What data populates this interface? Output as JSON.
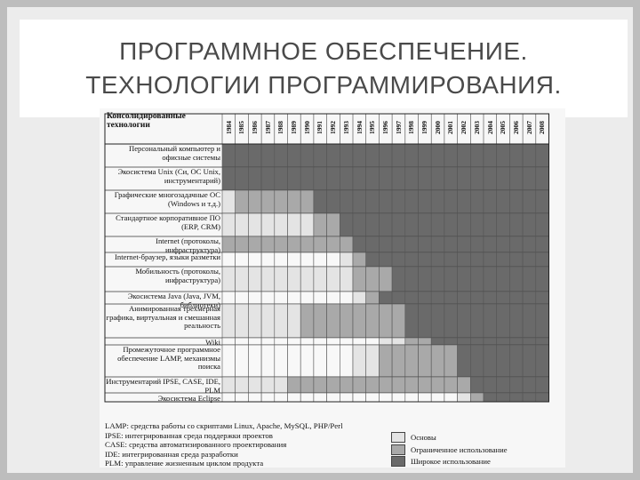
{
  "slide": {
    "title_line1": "ПРОГРАММНОЕ ОБЕСПЕЧЕНИЕ.",
    "title_line2": "ТЕХНОЛОГИИ ПРОГРАММИРОВАНИЯ."
  },
  "figure": {
    "header_label": "Консолидированные технологии",
    "years": [
      "1984",
      "1985",
      "1986",
      "1987",
      "1988",
      "1989",
      "1990",
      "1991",
      "1992",
      "1993",
      "1994",
      "1995",
      "1996",
      "1997",
      "1998",
      "1999",
      "2000",
      "2001",
      "2002",
      "2003",
      "2004",
      "2005",
      "2006",
      "2007",
      "2008"
    ],
    "rows": [
      {
        "label": "Персональный компьютер и офисные системы",
        "levels": [
          3,
          3,
          3,
          3,
          3,
          3,
          3,
          3,
          3,
          3,
          3,
          3,
          3,
          3,
          3,
          3,
          3,
          3,
          3,
          3,
          3,
          3,
          3,
          3,
          3
        ]
      },
      {
        "label": "Экосистема Unix (Си, ОС Unix, инструментарий)",
        "levels": [
          3,
          3,
          3,
          3,
          3,
          3,
          3,
          3,
          3,
          3,
          3,
          3,
          3,
          3,
          3,
          3,
          3,
          3,
          3,
          3,
          3,
          3,
          3,
          3,
          3
        ]
      },
      {
        "label": "Графические многозадачные ОС (Windows и т.д.)",
        "levels": [
          1,
          2,
          2,
          2,
          2,
          2,
          2,
          3,
          3,
          3,
          3,
          3,
          3,
          3,
          3,
          3,
          3,
          3,
          3,
          3,
          3,
          3,
          3,
          3,
          3
        ]
      },
      {
        "label": "Стандартное корпоративное ПО (ERP, CRM)",
        "levels": [
          1,
          1,
          1,
          1,
          1,
          1,
          1,
          2,
          2,
          3,
          3,
          3,
          3,
          3,
          3,
          3,
          3,
          3,
          3,
          3,
          3,
          3,
          3,
          3,
          3
        ]
      },
      {
        "label": "Internet (протоколы, инфраструктура)",
        "levels": [
          2,
          2,
          2,
          2,
          2,
          2,
          2,
          2,
          2,
          2,
          3,
          3,
          3,
          3,
          3,
          3,
          3,
          3,
          3,
          3,
          3,
          3,
          3,
          3,
          3
        ]
      },
      {
        "label": "Internet-браузер, языки разметки",
        "levels": [
          0,
          0,
          0,
          0,
          0,
          0,
          0,
          0,
          0,
          1,
          2,
          3,
          3,
          3,
          3,
          3,
          3,
          3,
          3,
          3,
          3,
          3,
          3,
          3,
          3
        ]
      },
      {
        "label": "Мобильность (протоколы, инфраструктура)",
        "levels": [
          1,
          1,
          1,
          1,
          1,
          1,
          1,
          1,
          1,
          1,
          2,
          2,
          2,
          3,
          3,
          3,
          3,
          3,
          3,
          3,
          3,
          3,
          3,
          3,
          3
        ]
      },
      {
        "label": "Экосистема Java (Java, JVM, библиотеки)",
        "levels": [
          0,
          0,
          0,
          0,
          0,
          0,
          0,
          0,
          0,
          0,
          1,
          2,
          3,
          3,
          3,
          3,
          3,
          3,
          3,
          3,
          3,
          3,
          3,
          3,
          3
        ]
      },
      {
        "label": "Анимированная трехмерная графика, виртуальная и смешанная реальность",
        "levels": [
          1,
          1,
          1,
          1,
          1,
          1,
          2,
          2,
          2,
          2,
          2,
          2,
          2,
          2,
          3,
          3,
          3,
          3,
          3,
          3,
          3,
          3,
          3,
          3,
          3
        ]
      },
      {
        "label": "Wiki",
        "levels": [
          0,
          0,
          0,
          0,
          0,
          0,
          0,
          0,
          0,
          0,
          0,
          0,
          1,
          1,
          2,
          2,
          3,
          3,
          3,
          3,
          3,
          3,
          3,
          3,
          3
        ]
      },
      {
        "label": "Промежуточное программное обеспечение LAMP, механизмы поиска",
        "levels": [
          0,
          0,
          0,
          0,
          0,
          0,
          0,
          0,
          0,
          0,
          1,
          1,
          2,
          2,
          2,
          2,
          2,
          2,
          3,
          3,
          3,
          3,
          3,
          3,
          3
        ]
      },
      {
        "label": "Инструментарий IPSE, CASE, IDE, PLM",
        "levels": [
          1,
          1,
          1,
          1,
          1,
          2,
          2,
          2,
          2,
          2,
          2,
          2,
          2,
          2,
          2,
          2,
          2,
          2,
          2,
          3,
          3,
          3,
          3,
          3,
          3
        ]
      },
      {
        "label": "Экосистема Eclipse",
        "levels": [
          0,
          0,
          0,
          0,
          0,
          0,
          0,
          0,
          0,
          0,
          0,
          0,
          0,
          0,
          0,
          0,
          0,
          0,
          1,
          2,
          3,
          3,
          3,
          3,
          3
        ]
      }
    ],
    "notes": [
      "LAMP: средства работы со скриптами Linux, Apache, MySQL, PHP/Perl",
      "IPSE: интегрированная среда поддержки проектов",
      "CASE: средства автоматизированного проектирования",
      "IDE: интегрированная среда разработки",
      "PLM: управление жизненным циклом продукта"
    ],
    "legend": [
      {
        "label": "Основы",
        "color": "#e4e4e4"
      },
      {
        "label": "Ограниченное использование",
        "color": "#a9a9a9"
      },
      {
        "label": "Широкое использование",
        "color": "#6a6a6a"
      }
    ],
    "level_colors": [
      "#f8f8f8",
      "#e4e4e4",
      "#a9a9a9",
      "#6a6a6a"
    ]
  }
}
